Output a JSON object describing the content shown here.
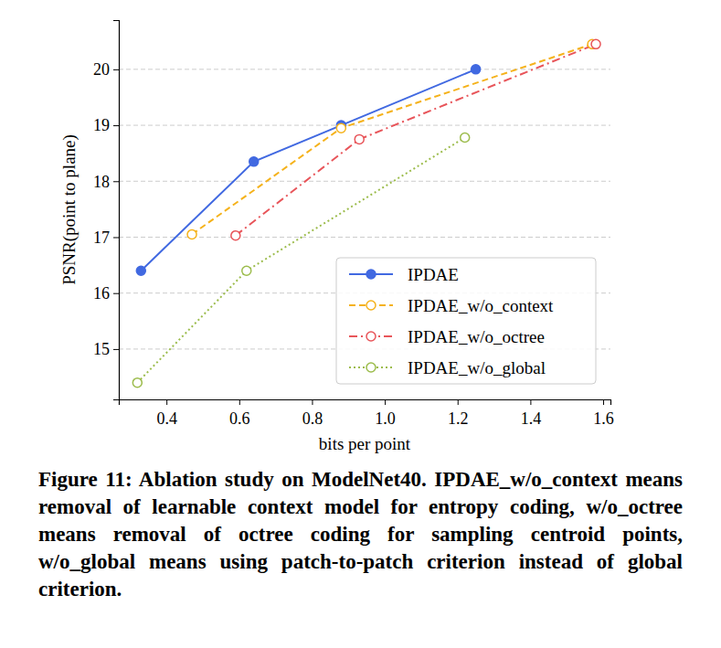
{
  "chart_data": {
    "type": "line",
    "x_label": "bits per point",
    "y_label": "PSNR(point to plane)",
    "caption": "Figure 11: Ablation study on ModelNet40. IPDAE_w/o_context means removal of learnable context model for entropy coding, w/o_octree means removal of octree coding for sampling centroid points, w/o_global means using patch-to-patch criterion instead of global criterion.",
    "xlim": [
      0.269,
      1.62
    ],
    "ylim": [
      14.1,
      20.88
    ],
    "xticks": [
      0.4,
      0.6,
      0.8,
      {
        "value": 1,
        "label": "1.0"
      },
      1.2,
      1.4,
      1.6
    ],
    "yticks": [
      15,
      16,
      17,
      18,
      19,
      20
    ],
    "grid": "y",
    "legend": "lower right",
    "series": [
      {
        "name": "IPDAE",
        "color": "#4169e1",
        "marker": "circle",
        "line_style": "solid",
        "x": [
          0.33,
          0.64,
          0.88,
          1.25
        ],
        "values": [
          16.4,
          18.35,
          19.0,
          20.0
        ]
      },
      {
        "name": "IPDAE_w/o_context",
        "color": "#f5b21b",
        "marker": "open_circle",
        "line_style": "dashed",
        "x": [
          0.47,
          0.88,
          1.57
        ],
        "values": [
          17.05,
          18.95,
          20.45
        ]
      },
      {
        "name": "IPDAE_w/o_octree",
        "color": "#e8555a",
        "marker": "open_circle",
        "line_style": "dashdot",
        "x": [
          0.59,
          0.93,
          1.58
        ],
        "values": [
          17.03,
          18.75,
          20.45
        ]
      },
      {
        "name": "IPDAE_w/o_global",
        "color": "#9cbc4c",
        "marker": "open_circle",
        "line_style": "dotted",
        "x": [
          0.32,
          0.62,
          1.22
        ],
        "values": [
          14.4,
          16.4,
          18.78
        ]
      }
    ]
  }
}
